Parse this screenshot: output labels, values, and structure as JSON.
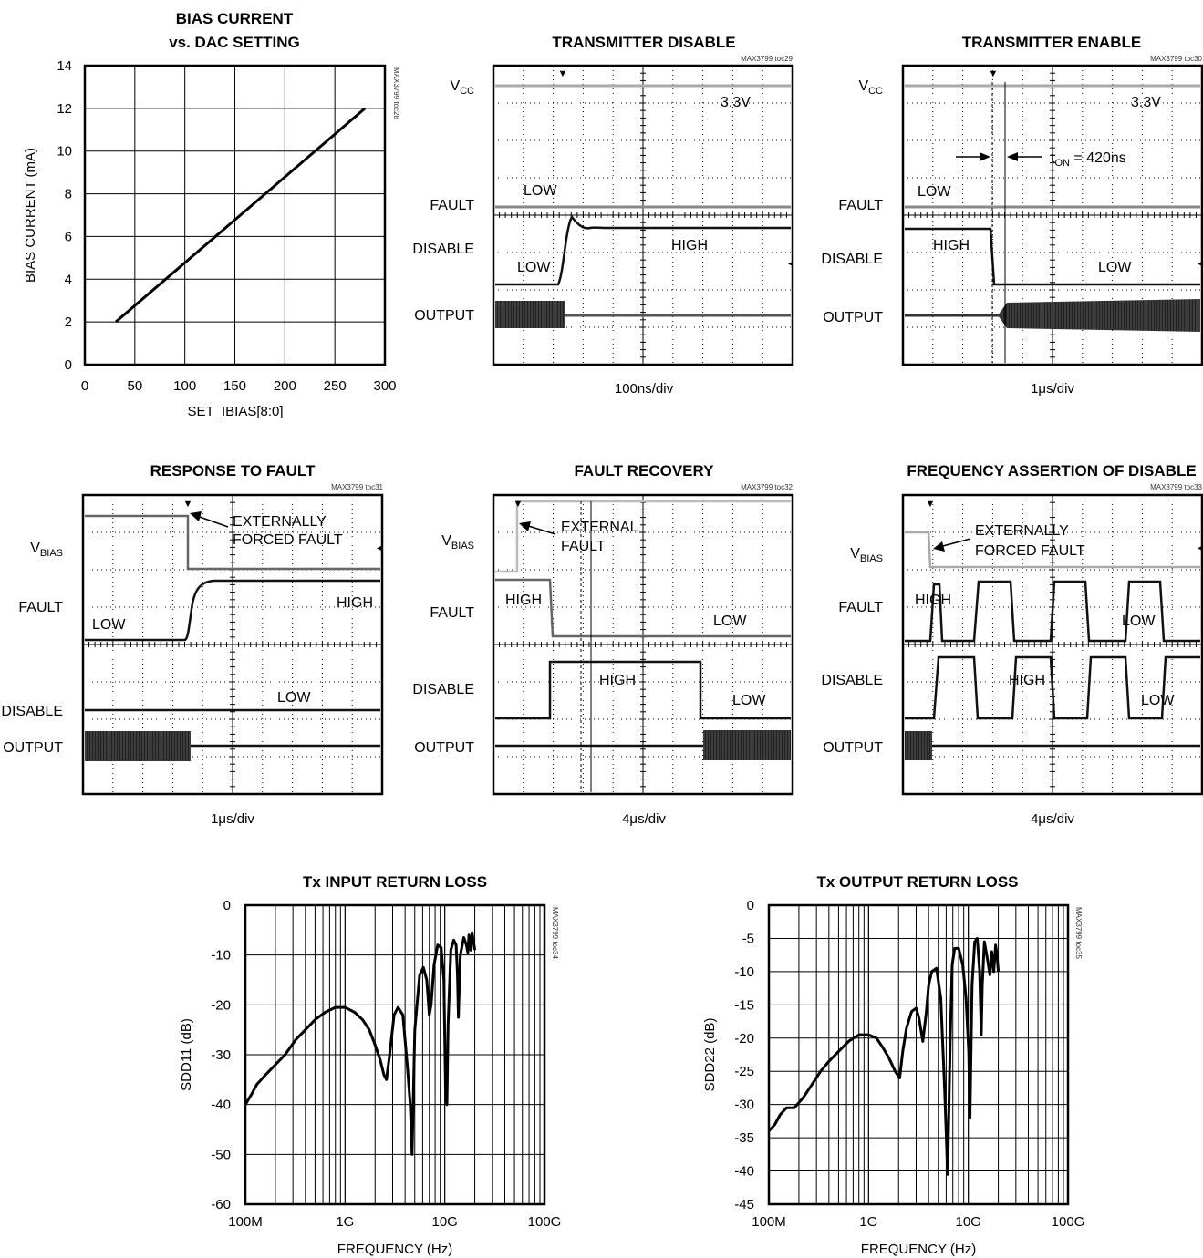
{
  "chart_data": [
    {
      "id": "toc28",
      "type": "line",
      "title": [
        "BIAS CURRENT",
        "vs. DAC SETTING"
      ],
      "xlabel": "SET_IBIAS[8:0]",
      "ylabel": "BIAS CURRENT (mA)",
      "code": "MAX3799 toc28",
      "xlim": [
        0,
        300
      ],
      "ylim": [
        0,
        14
      ],
      "xticks": [
        0,
        50,
        100,
        150,
        200,
        250,
        300
      ],
      "yticks": [
        0,
        2,
        4,
        6,
        8,
        10,
        12,
        14
      ],
      "grid": true,
      "series": [
        {
          "x": [
            31,
            280
          ],
          "y": [
            2,
            12
          ]
        }
      ]
    },
    {
      "id": "toc29",
      "type": "line",
      "title": [
        "TRANSMITTER DISABLE"
      ],
      "code": "MAX3799 toc29",
      "xlabel": "100ns/div",
      "channels": [
        {
          "label": "V",
          "sub": "CC"
        },
        {
          "label": "FAULT"
        },
        {
          "label": "DISABLE"
        },
        {
          "label": "OUTPUT"
        }
      ],
      "annotations": [
        "3.3V",
        "LOW",
        "HIGH",
        "LOW"
      ]
    },
    {
      "id": "toc30",
      "type": "line",
      "title": [
        "TRANSMITTER ENABLE"
      ],
      "code": "MAX3799 toc30",
      "xlabel": "1μs/div",
      "channels": [
        {
          "label": "V",
          "sub": "CC"
        },
        {
          "label": "FAULT"
        },
        {
          "label": "DISABLE"
        },
        {
          "label": "OUTPUT"
        }
      ],
      "annotations": [
        "3.3V",
        "LOW",
        "HIGH",
        "LOW"
      ],
      "measurement": {
        "t": "t",
        "sub": "ON",
        "rest": " = 420ns"
      }
    },
    {
      "id": "toc31",
      "type": "line",
      "title": [
        "RESPONSE TO FAULT"
      ],
      "code": "MAX3799 toc31",
      "xlabel": "1μs/div",
      "channels": [
        {
          "label": "V",
          "sub": "BIAS"
        },
        {
          "label": "FAULT"
        },
        {
          "label": "DISABLE"
        },
        {
          "label": "OUTPUT"
        }
      ],
      "annotations": [
        "EXTERNALLY",
        "FORCED FAULT",
        "HIGH",
        "LOW",
        "LOW"
      ]
    },
    {
      "id": "toc32",
      "type": "line",
      "title": [
        "FAULT RECOVERY"
      ],
      "code": "MAX3799 toc32",
      "xlabel": "4μs/div",
      "channels": [
        {
          "label": "V",
          "sub": "BIAS"
        },
        {
          "label": "FAULT"
        },
        {
          "label": "DISABLE"
        },
        {
          "label": "OUTPUT"
        }
      ],
      "annotations": [
        "EXTERNAL",
        "FAULT",
        "HIGH",
        "LOW",
        "HIGH",
        "LOW"
      ]
    },
    {
      "id": "toc33",
      "type": "line",
      "title": [
        "FREQUENCY ASSERTION OF DISABLE"
      ],
      "code": "MAX3799 toc33",
      "xlabel": "4μs/div",
      "channels": [
        {
          "label": "V",
          "sub": "BIAS"
        },
        {
          "label": "FAULT"
        },
        {
          "label": "DISABLE"
        },
        {
          "label": "OUTPUT"
        }
      ],
      "annotations": [
        "EXTERNALLY",
        "FORCED FAULT",
        "HIGH",
        "LOW",
        "HIGH",
        "LOW"
      ]
    },
    {
      "id": "toc34",
      "type": "line",
      "title": [
        "Tx INPUT RETURN LOSS"
      ],
      "code": "MAX3799 toc34",
      "xlabel": "FREQUENCY (Hz)",
      "ylabel": "SDD11 (dB)",
      "xscale": "log",
      "xlim": [
        100000000,
        100000000000
      ],
      "ylim": [
        -60,
        0
      ],
      "xticks": [
        "100M",
        "1G",
        "10G",
        "100G"
      ],
      "yticks": [
        0,
        -10,
        -20,
        -30,
        -40,
        -50,
        -60
      ],
      "grid": true,
      "series": [
        {
          "x": [
            100000000.0,
            115000000.0,
            130000000.0,
            160000000.0,
            200000000.0,
            250000000.0,
            320000000.0,
            400000000.0,
            500000000.0,
            630000000.0,
            800000000.0,
            1000000000.0,
            1250000000.0,
            1500000000.0,
            1750000000.0,
            2000000000.0,
            2250000000.0,
            2450000000.0,
            2600000000.0,
            2800000000.0,
            3100000000.0,
            3400000000.0,
            3800000000.0,
            4200000000.0,
            4500000000.0,
            4700000000.0,
            5000000000.0,
            5600000000.0,
            6100000000.0,
            6600000000.0,
            7000000000.0,
            7300000000.0,
            7800000000.0,
            8500000000.0,
            9200000000.0,
            9800000000.0,
            10200000000.0,
            10500000000.0,
            10800000000.0,
            11500000000.0,
            12300000000.0,
            13000000000.0,
            13400000000.0,
            13700000000.0,
            14300000000.0,
            15500000000.0,
            16500000000.0,
            17000000000.0,
            17500000000.0,
            18200000000.0,
            18800000000.0,
            19300000000.0,
            20000000000.0
          ],
          "y": [
            -40,
            -38,
            -36,
            -34,
            -32,
            -30,
            -27,
            -25,
            -23,
            -21.5,
            -20.5,
            -20.5,
            -21.5,
            -23,
            -25,
            -28,
            -31,
            -34,
            -35,
            -30,
            -22,
            -20.5,
            -22,
            -32,
            -40,
            -50,
            -25,
            -14,
            -12.5,
            -15,
            -22,
            -20,
            -12,
            -8,
            -8.5,
            -15,
            -38,
            -40,
            -24,
            -9,
            -7,
            -8,
            -14,
            -22.5,
            -10,
            -6.5,
            -8,
            -9.5,
            -6,
            -9,
            -5.5,
            -7,
            -9
          ]
        }
      ]
    },
    {
      "id": "toc35",
      "type": "line",
      "title": [
        "Tx OUTPUT RETURN LOSS"
      ],
      "code": "MAX3799 toc35",
      "xlabel": "FREQUENCY (Hz)",
      "ylabel": "SDD22 (dB)",
      "xscale": "log",
      "xlim": [
        100000000,
        100000000000
      ],
      "ylim": [
        -45,
        0
      ],
      "xticks": [
        "100M",
        "1G",
        "10G",
        "100G"
      ],
      "yticks": [
        0,
        -5,
        -10,
        -15,
        -20,
        -25,
        -30,
        -35,
        -40,
        -45
      ],
      "grid": true,
      "series": [
        {
          "x": [
            100000000.0,
            115000000.0,
            130000000.0,
            150000000.0,
            180000000.0,
            220000000.0,
            270000000.0,
            330000000.0,
            400000000.0,
            500000000.0,
            630000000.0,
            800000000.0,
            1000000000.0,
            1200000000.0,
            1400000000.0,
            1600000000.0,
            1850000000.0,
            2050000000.0,
            2200000000.0,
            2400000000.0,
            2700000000.0,
            3000000000.0,
            3200000000.0,
            3500000000.0,
            3800000000.0,
            4000000000.0,
            4300000000.0,
            4800000000.0,
            5300000000.0,
            5800000000.0,
            6200000000.0,
            6600000000.0,
            6900000000.0,
            7300000000.0,
            8000000000.0,
            8800000000.0,
            9500000000.0,
            10100000000.0,
            10400000000.0,
            10900000000.0,
            11600000000.0,
            12300000000.0,
            13000000000.0,
            13500000000.0,
            13800000000.0,
            14500000000.0,
            15500000000.0,
            16500000000.0,
            17200000000.0,
            18000000000.0,
            18800000000.0,
            19400000000.0,
            20000000000.0
          ],
          "y": [
            -34,
            -33,
            -31.5,
            -30.5,
            -30.5,
            -29,
            -27,
            -25,
            -23.5,
            -22,
            -20.5,
            -19.5,
            -19.5,
            -20,
            -21.5,
            -23,
            -25,
            -26,
            -22,
            -18.5,
            -16,
            -15.5,
            -17,
            -20.5,
            -16,
            -12,
            -10,
            -9.5,
            -14,
            -28,
            -40.5,
            -20,
            -9,
            -6.5,
            -6.5,
            -9,
            -14,
            -22,
            -32,
            -12,
            -5.5,
            -5,
            -10,
            -19.5,
            -12,
            -5.5,
            -8,
            -10.5,
            -7,
            -10,
            -6,
            -7.5,
            -10
          ]
        }
      ]
    }
  ]
}
